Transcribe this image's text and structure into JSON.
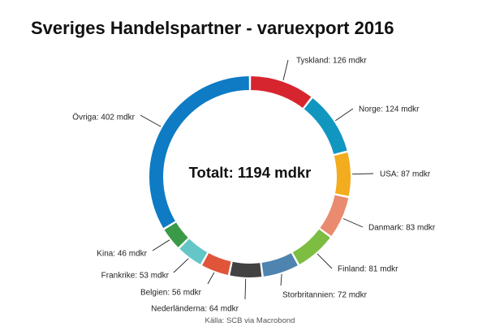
{
  "chart_data": {
    "type": "pie",
    "variant": "donut",
    "title": "Sveriges Handelspartner - varuexport 2016",
    "center_label": "Totalt: 1194 mdkr",
    "source": "Källa: SCB via Macrobond",
    "unit": "mdkr",
    "slices": [
      {
        "name": "Tyskland",
        "value": 126,
        "label": "Tyskland: 126 mdkr",
        "color": "#d7252f"
      },
      {
        "name": "Norge",
        "value": 124,
        "label": "Norge: 124 mdkr",
        "color": "#1196c0"
      },
      {
        "name": "USA",
        "value": 87,
        "label": "USA: 87 mdkr",
        "color": "#f2ac1e"
      },
      {
        "name": "Danmark",
        "value": 83,
        "label": "Danmark: 83 mdkr",
        "color": "#ea8a6f"
      },
      {
        "name": "Finland",
        "value": 81,
        "label": "Finland: 81 mdkr",
        "color": "#7cbd42"
      },
      {
        "name": "Storbritannien",
        "value": 72,
        "label": "Storbritannien: 72 mdkr",
        "color": "#4f83b0"
      },
      {
        "name": "Nederländerna",
        "value": 64,
        "label": "Nederländerna: 64 mdkr",
        "color": "#424242"
      },
      {
        "name": "Belgien",
        "value": 56,
        "label": "Belgien: 56 mdkr",
        "color": "#e0553a"
      },
      {
        "name": "Frankrike",
        "value": 53,
        "label": "Frankrike: 53 mdkr",
        "color": "#64c6c6"
      },
      {
        "name": "Kina",
        "value": 46,
        "label": "Kina: 46 mdkr",
        "color": "#3a9a48"
      },
      {
        "name": "Övriga",
        "value": 402,
        "label": "Övriga: 402 mdkr",
        "color": "#0e7bc4"
      }
    ]
  }
}
